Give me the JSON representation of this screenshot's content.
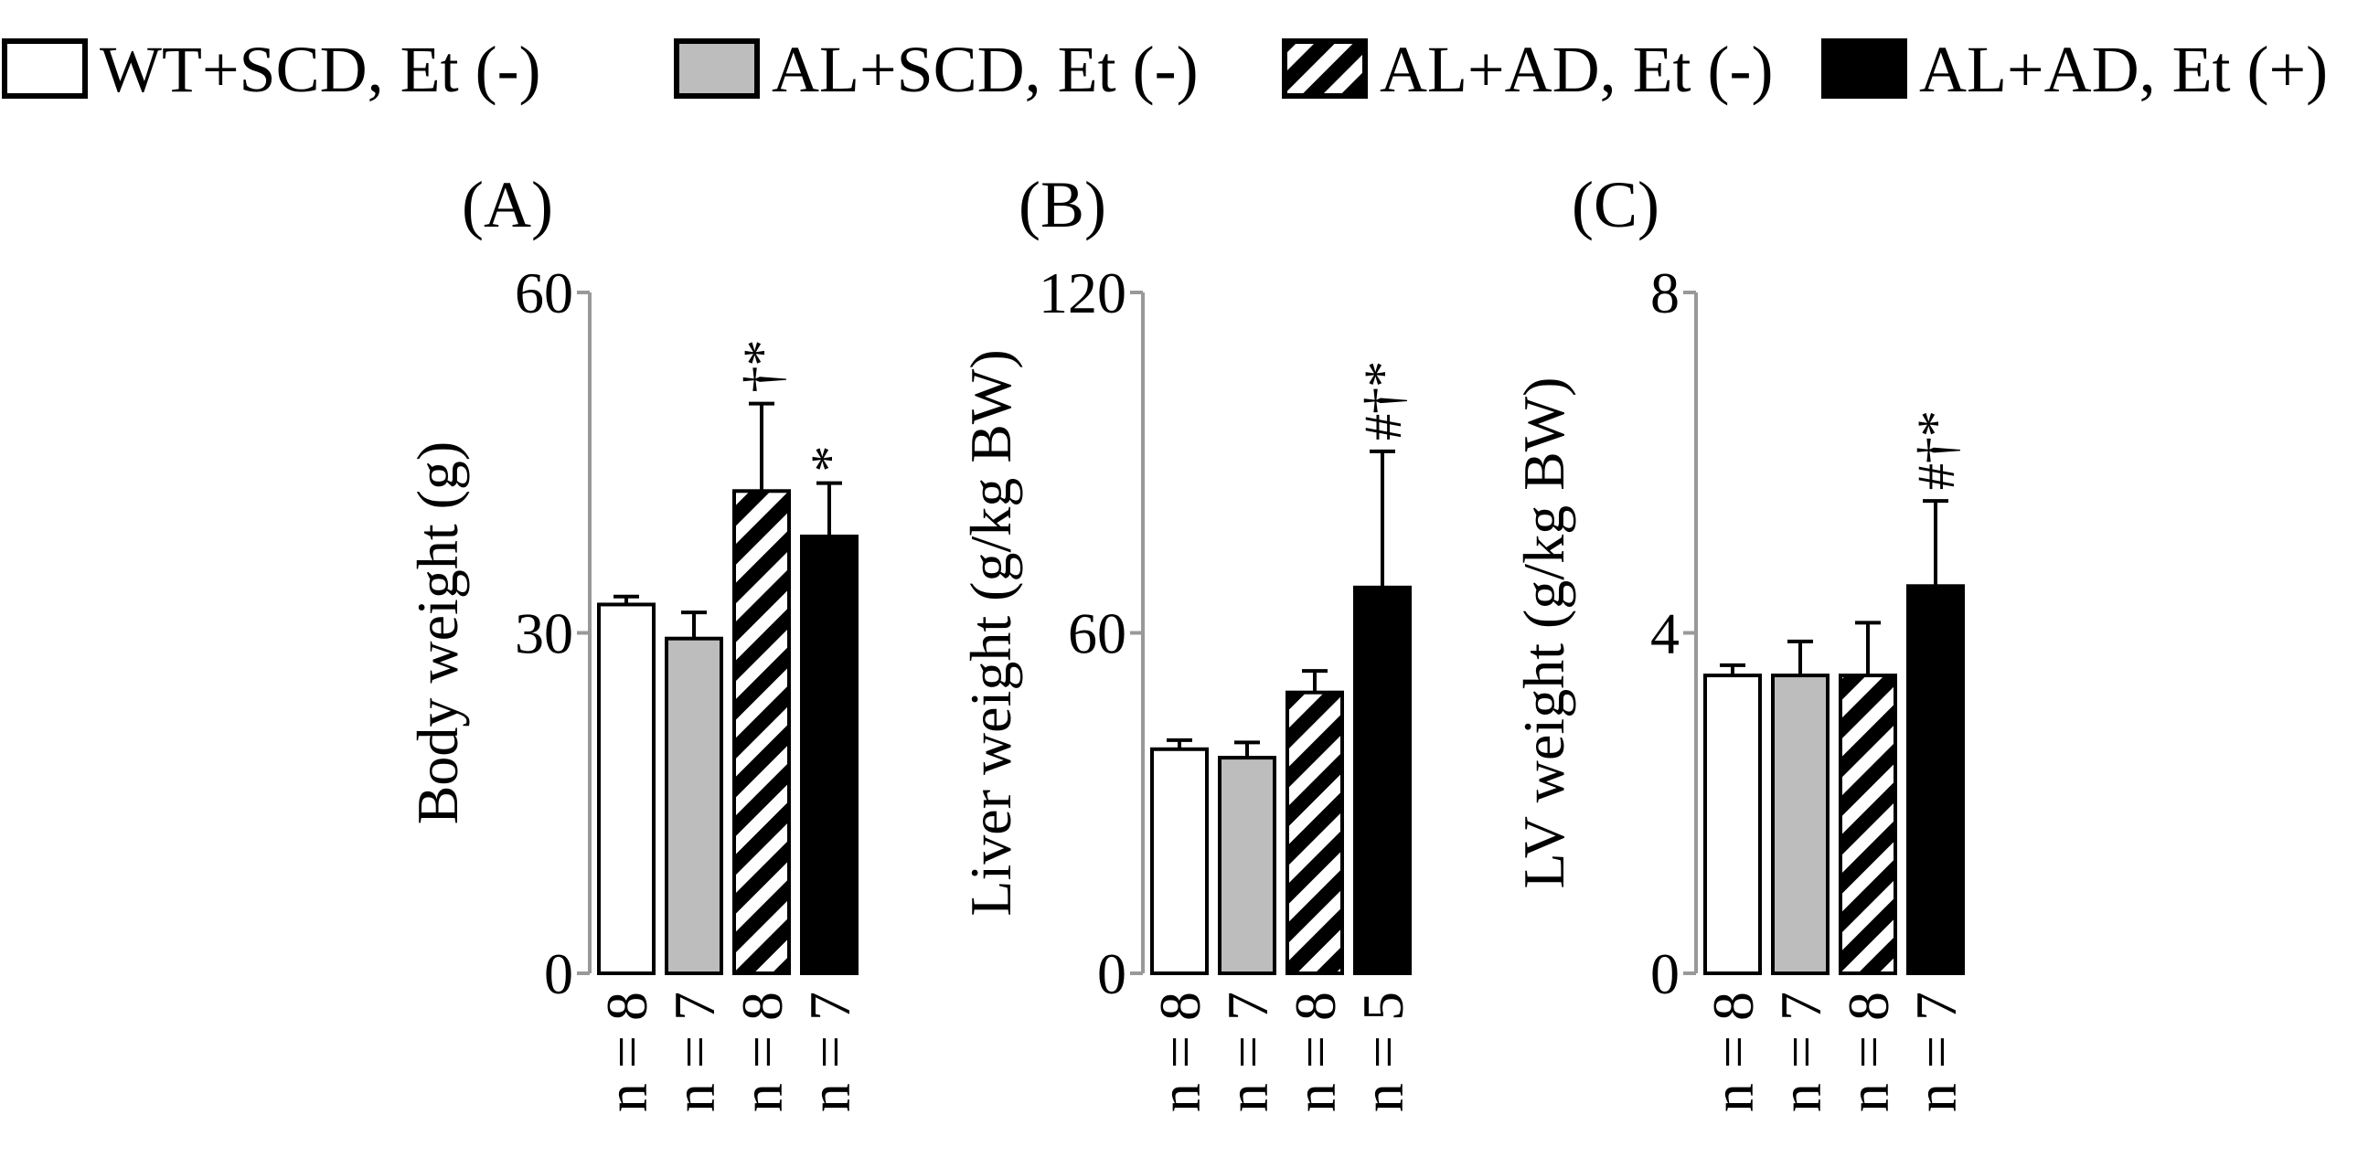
{
  "legend": [
    {
      "label": "WT+SCD, Et (-)",
      "pattern": "white"
    },
    {
      "label": "AL+SCD, Et (-)",
      "pattern": "gray"
    },
    {
      "label": "AL+AD, Et (-)",
      "pattern": "hatch"
    },
    {
      "label": "AL+AD, Et (+)",
      "pattern": "black"
    }
  ],
  "colors": {
    "gray_fill": "#bdbdbd",
    "axis": "#999999",
    "black": "#000000"
  },
  "chart_data": [
    {
      "type": "bar",
      "panel_label": "(A)",
      "ylabel": "Body weight (g)",
      "ylim": [
        0,
        60
      ],
      "ticks": [
        0,
        30,
        60
      ],
      "tick_labels": [
        "0",
        "30",
        "60"
      ],
      "categories": [
        "WT+SCD, Et (-)",
        "AL+SCD, Et (-)",
        "AL+AD, Et (-)",
        "AL+AD, Et (+)"
      ],
      "values": [
        32.5,
        29.5,
        42.5,
        38.5
      ],
      "errors": [
        0.7,
        2.3,
        7.7,
        4.7
      ],
      "n_labels": [
        "n = 8",
        "n = 7",
        "n = 8",
        "n = 7"
      ],
      "annotations": [
        "",
        "",
        "†*",
        "*"
      ]
    },
    {
      "type": "bar",
      "panel_label": "(B)",
      "ylabel": "Liver weight (g/kg BW)",
      "ylim": [
        0,
        120
      ],
      "ticks": [
        0,
        60,
        120
      ],
      "tick_labels": [
        "0",
        "60",
        "120"
      ],
      "categories": [
        "WT+SCD, Et (-)",
        "AL+SCD, Et (-)",
        "AL+AD, Et (-)",
        "AL+AD, Et (+)"
      ],
      "values": [
        39.5,
        38,
        49.5,
        68
      ],
      "errors": [
        1.6,
        2.7,
        3.8,
        24
      ],
      "n_labels": [
        "n = 8",
        "n = 7",
        "n = 8",
        "n = 5"
      ],
      "annotations": [
        "",
        "",
        "",
        "#†*"
      ]
    },
    {
      "type": "bar",
      "panel_label": "(C)",
      "ylabel": "LV weight (g/kg BW)",
      "ylim": [
        0,
        8
      ],
      "ticks": [
        0,
        4,
        8
      ],
      "tick_labels": [
        "0",
        "4",
        "8"
      ],
      "categories": [
        "WT+SCD, Et (-)",
        "AL+SCD, Et (-)",
        "AL+AD, Et (-)",
        "AL+AD, Et (+)"
      ],
      "values": [
        3.5,
        3.5,
        3.5,
        4.55
      ],
      "errors": [
        0.12,
        0.4,
        0.62,
        1.0
      ],
      "n_labels": [
        "n = 8",
        "n = 7",
        "n = 8",
        "n = 7"
      ],
      "annotations": [
        "",
        "",
        "",
        "#†*"
      ]
    }
  ]
}
